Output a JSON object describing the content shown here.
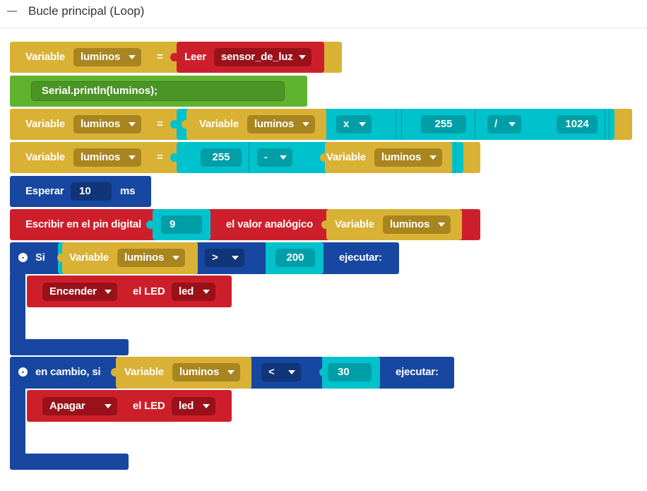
{
  "header": {
    "title": "Bucle principal (Loop)",
    "collapse_icon": "minus-icon"
  },
  "colors": {
    "variable": "#d9b135",
    "action": "#cd1f2b",
    "serial": "#5fb32e",
    "math": "#00c2cc",
    "control": "#1747a0"
  },
  "block1": {
    "variable_label": "Variable",
    "var": "luminos",
    "equals": "=",
    "read_label": "Leer",
    "sensor": "sensor_de_luz"
  },
  "block2": {
    "code": "Serial.println(luminos);"
  },
  "block3": {
    "variable_label": "Variable",
    "var": "luminos",
    "equals": "=",
    "inner_variable_label": "Variable",
    "inner_var": "luminos",
    "op1": "x",
    "num1": "255",
    "op2": "/",
    "num2": "1024"
  },
  "block4": {
    "variable_label": "Variable",
    "var": "luminos",
    "equals": "=",
    "num": "255",
    "op": "-",
    "inner_variable_label": "Variable",
    "inner_var": "luminos"
  },
  "block5": {
    "label": "Esperar",
    "value": "10",
    "unit": "ms"
  },
  "block6": {
    "label": "Escribir en el pin digital",
    "pin": "9",
    "label2": "el valor analógico",
    "variable_label": "Variable",
    "var": "luminos"
  },
  "if_block": {
    "collapse": "-",
    "label": "Si",
    "variable_label": "Variable",
    "var": "luminos",
    "op": ">",
    "value": "200",
    "exec": "ejecutar:",
    "action": {
      "cmd": "Encender",
      "label": "el LED",
      "led": "led"
    }
  },
  "elseif_block": {
    "collapse": "-",
    "label": "en cambio, si",
    "variable_label": "Variable",
    "var": "luminos",
    "op": "<",
    "value": "30",
    "exec": "ejecutar:",
    "action": {
      "cmd": "Apagar",
      "label": "el LED",
      "led": "led"
    }
  }
}
